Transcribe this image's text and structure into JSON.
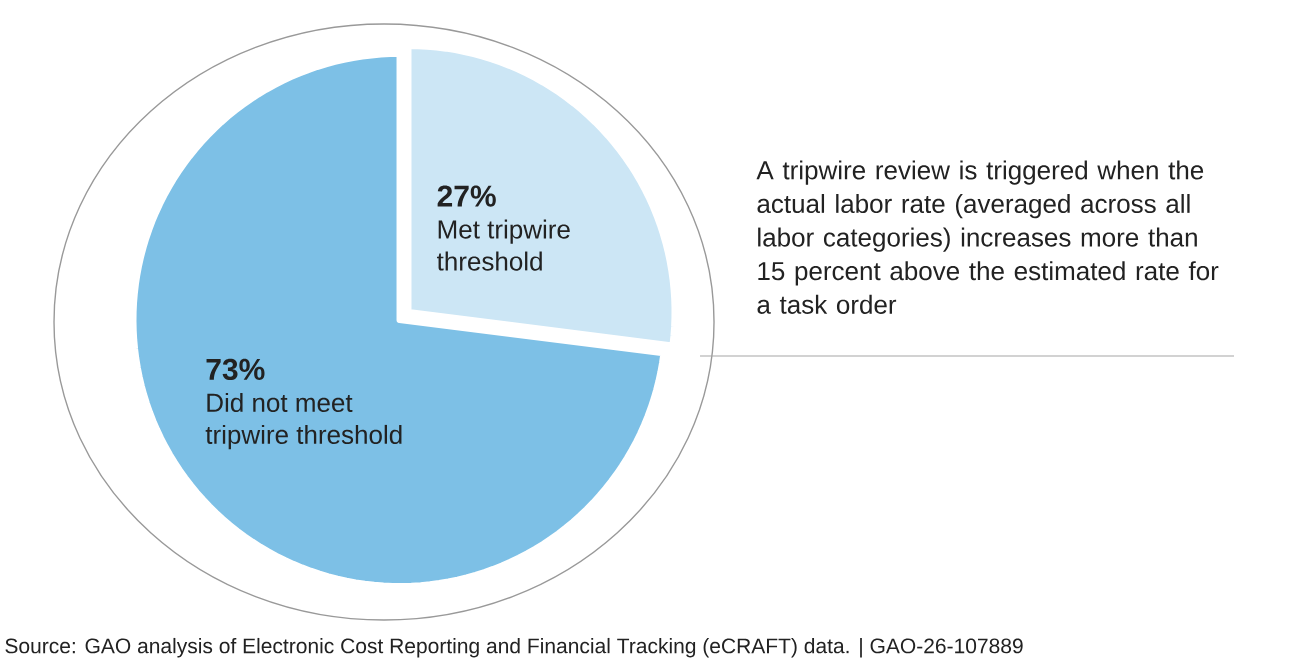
{
  "chart_data": {
    "type": "pie",
    "categories": [
      "Met tripwire threshold",
      "Did not meet tripwire threshold"
    ],
    "values": [
      27,
      73
    ],
    "colors": [
      "#cce6f5",
      "#7dc0e6"
    ],
    "value_labels": [
      "27%",
      "73%"
    ],
    "annotations": [
      "A tripwire review is triggered when the actual labor rate (averaged across all labor categories) increases more than 15 percent above the estimated rate for a task order",
      "Source: GAO analysis of Electronic Cost Reporting and Financial Tracking (eCRAFT) data.  |  GAO-26-107889"
    ]
  }
}
